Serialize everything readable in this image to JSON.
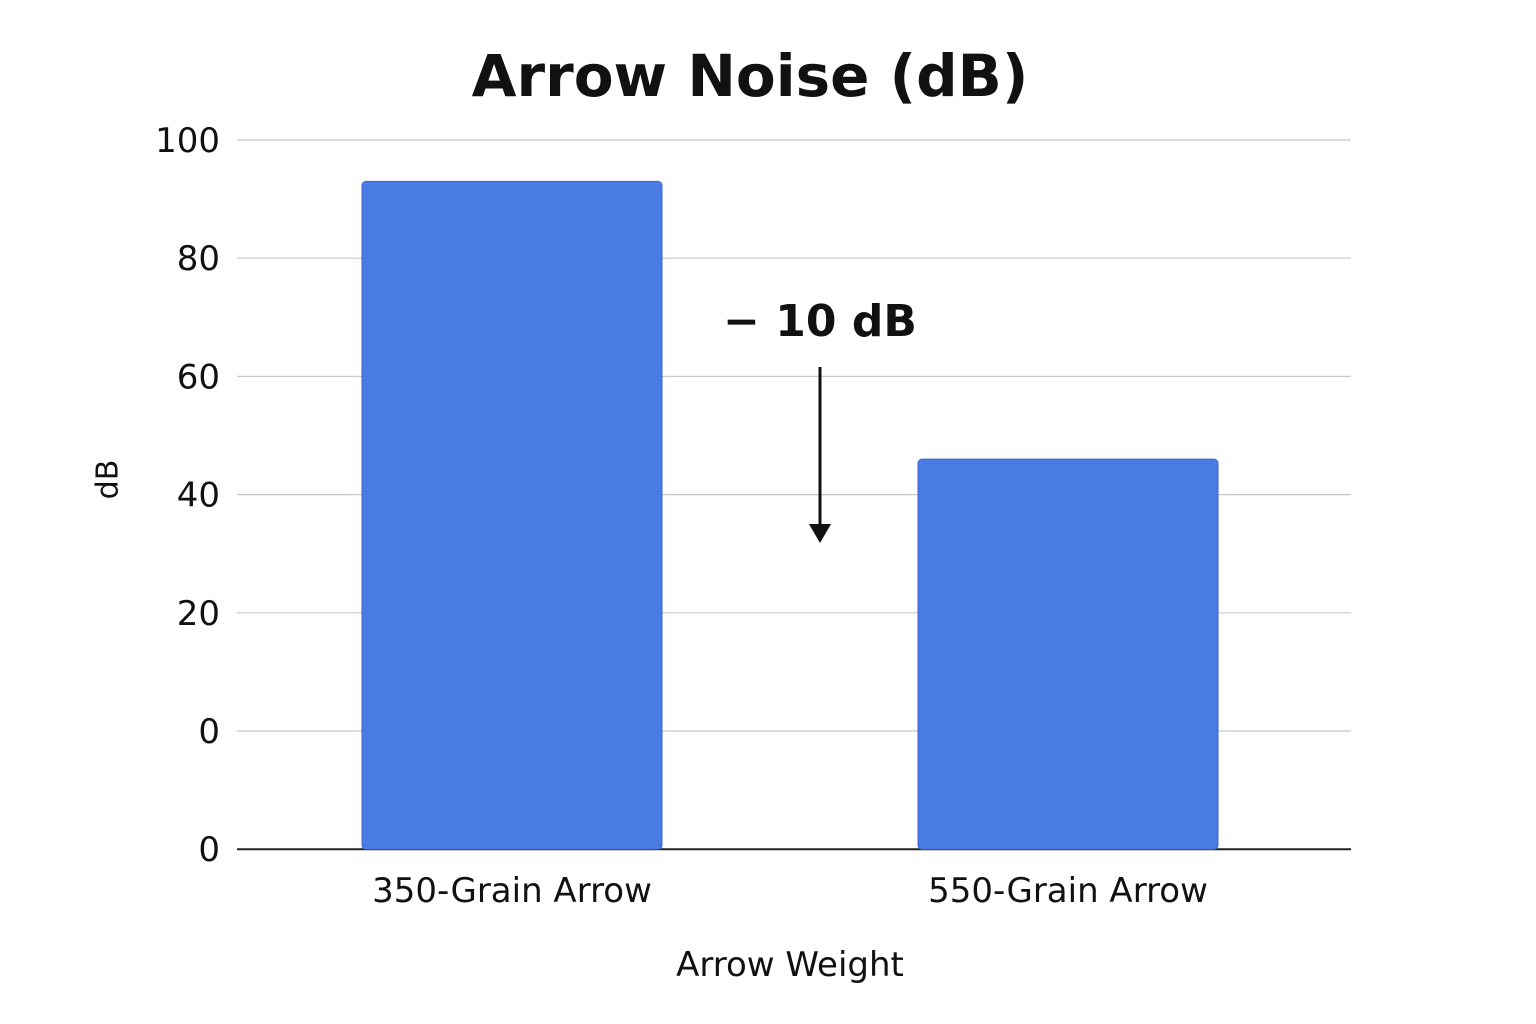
{
  "chart_data": {
    "type": "bar",
    "title": "Arrow Noise (dB)",
    "xlabel": "Arrow Weight",
    "ylabel": "dB",
    "categories": [
      "350-Grain Arrow",
      "550-Grain Arrow"
    ],
    "values": [
      93,
      46
    ],
    "y_tick_labels": [
      "100",
      "80",
      "60",
      "40",
      "20",
      "0",
      "0"
    ],
    "ylim": [
      0,
      100
    ],
    "grid": true,
    "bar_color": "#4a7ae4",
    "annotation": {
      "text": "− 10 dB",
      "arrow": "down"
    }
  }
}
